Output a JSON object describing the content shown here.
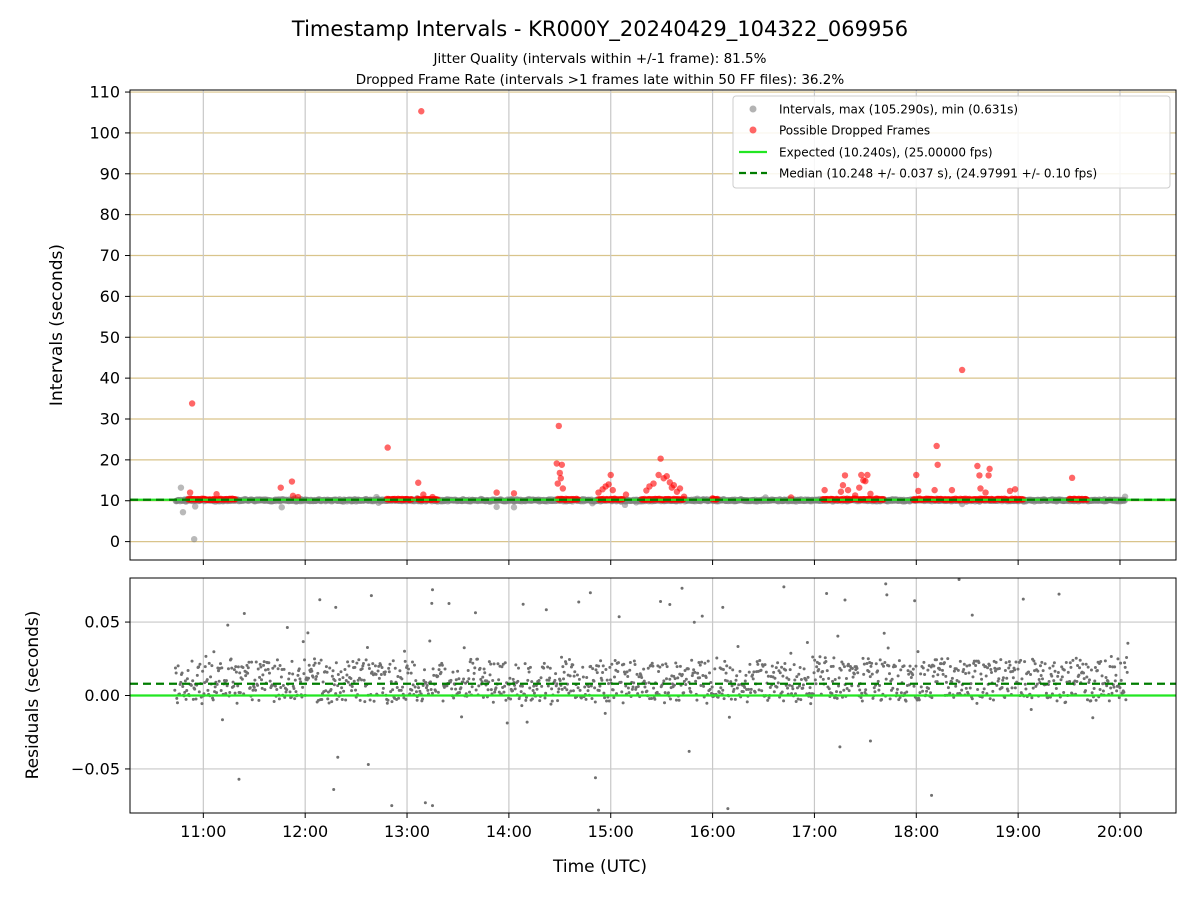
{
  "chart_data": [
    {
      "type": "scatter",
      "title": "Timestamp Intervals - KR000Y_20240429_104322_069956",
      "subtitles": [
        "Jitter Quality (intervals within +/-1 frame): 81.5%",
        "Dropped Frame Rate (intervals >1 frames late within 50 FF files): 36.2%"
      ],
      "xlabel": "Time (UTC)",
      "ylabel": "Intervals (seconds)",
      "xlim": [
        10.28,
        20.55
      ],
      "ylim": [
        -4.5,
        110.5
      ],
      "x_ticks": [
        "11:00",
        "12:00",
        "13:00",
        "14:00",
        "15:00",
        "16:00",
        "17:00",
        "18:00",
        "19:00",
        "20:00"
      ],
      "y_ticks": [
        "0",
        "10",
        "20",
        "30",
        "40",
        "50",
        "60",
        "70",
        "80",
        "90",
        "100",
        "110"
      ],
      "grid": true,
      "legend_position": "top-right",
      "legend": [
        "Intervals, max (105.290s), min (0.631s)",
        "Possible Dropped Frames",
        "Expected (10.240s), (25.00000 fps)",
        "Median (10.248 +/- 0.037 s), (24.97991 +/- 0.10 fps)"
      ],
      "expected": 10.24,
      "median": 10.248,
      "series": [
        {
          "name": "Intervals, max (105.290s), min (0.631s)",
          "color": "#808080",
          "points": [
            [
              10.75,
              10.1
            ],
            [
              10.78,
              13.2
            ],
            [
              10.8,
              7.2
            ],
            [
              10.83,
              9.8
            ],
            [
              10.88,
              10.5
            ],
            [
              10.91,
              0.6
            ],
            [
              10.92,
              8.6
            ],
            [
              11.25,
              10.4
            ],
            [
              11.35,
              9.9
            ],
            [
              11.55,
              10.3
            ],
            [
              11.77,
              8.4
            ],
            [
              11.9,
              10.6
            ],
            [
              12.1,
              10.0
            ],
            [
              12.3,
              10.3
            ],
            [
              12.45,
              9.9
            ],
            [
              12.6,
              10.4
            ],
            [
              12.7,
              10.9
            ],
            [
              12.72,
              9.5
            ],
            [
              12.95,
              10.2
            ],
            [
              13.1,
              10.6
            ],
            [
              13.3,
              9.8
            ],
            [
              13.55,
              10.3
            ],
            [
              13.72,
              10.2
            ],
            [
              13.88,
              8.5
            ],
            [
              14.05,
              8.4
            ],
            [
              14.2,
              10.4
            ],
            [
              14.35,
              10.0
            ],
            [
              14.72,
              10.3
            ],
            [
              14.82,
              9.4
            ],
            [
              15.14,
              9.0
            ],
            [
              15.25,
              9.6
            ],
            [
              15.45,
              10.1
            ],
            [
              15.85,
              10.5
            ],
            [
              16.05,
              10.0
            ],
            [
              16.22,
              10.3
            ],
            [
              16.4,
              10.1
            ],
            [
              16.52,
              10.8
            ],
            [
              16.7,
              10.2
            ],
            [
              16.85,
              10.0
            ],
            [
              17.05,
              10.4
            ],
            [
              17.72,
              10.1
            ],
            [
              18.2,
              10.5
            ],
            [
              18.45,
              9.2
            ],
            [
              18.65,
              10.3
            ],
            [
              19.05,
              10.1
            ],
            [
              19.25,
              10.3
            ],
            [
              19.45,
              10.0
            ],
            [
              19.75,
              10.2
            ],
            [
              19.85,
              10.4
            ],
            [
              19.95,
              10.1
            ],
            [
              20.05,
              11.0
            ]
          ],
          "cluster_ranges_hours": [
            [
              10.73,
              20.05
            ]
          ]
        },
        {
          "name": "Possible Dropped Frames",
          "color": "#ff0000",
          "points": [
            [
              10.89,
              33.8
            ],
            [
              10.87,
              12.0
            ],
            [
              11.13,
              11.6
            ],
            [
              11.76,
              13.2
            ],
            [
              11.87,
              14.7
            ],
            [
              11.88,
              11.2
            ],
            [
              11.93,
              10.9
            ],
            [
              12.81,
              23.0
            ],
            [
              13.11,
              14.4
            ],
            [
              13.14,
              105.3
            ],
            [
              13.16,
              11.5
            ],
            [
              13.25,
              10.9
            ],
            [
              13.88,
              12.0
            ],
            [
              14.05,
              11.8
            ],
            [
              14.49,
              28.3
            ],
            [
              14.47,
              19.1
            ],
            [
              14.5,
              16.8
            ],
            [
              14.51,
              15.5
            ],
            [
              14.48,
              14.2
            ],
            [
              14.53,
              13.0
            ],
            [
              14.52,
              18.8
            ],
            [
              14.88,
              12.0
            ],
            [
              14.92,
              12.8
            ],
            [
              14.95,
              13.5
            ],
            [
              14.98,
              14.0
            ],
            [
              15.0,
              16.3
            ],
            [
              15.02,
              12.6
            ],
            [
              15.15,
              11.5
            ],
            [
              15.35,
              12.5
            ],
            [
              15.38,
              13.5
            ],
            [
              15.42,
              14.2
            ],
            [
              15.47,
              16.3
            ],
            [
              15.49,
              20.3
            ],
            [
              15.52,
              15.5
            ],
            [
              15.55,
              16.0
            ],
            [
              15.58,
              14.5
            ],
            [
              15.6,
              13.2
            ],
            [
              15.62,
              13.8
            ],
            [
              15.65,
              12.2
            ],
            [
              15.68,
              13.0
            ],
            [
              15.72,
              11.0
            ],
            [
              16.0,
              10.6
            ],
            [
              16.77,
              10.8
            ],
            [
              17.1,
              12.6
            ],
            [
              17.26,
              12.2
            ],
            [
              17.28,
              13.8
            ],
            [
              17.3,
              16.2
            ],
            [
              17.33,
              12.6
            ],
            [
              17.4,
              11.3
            ],
            [
              17.44,
              13.2
            ],
            [
              17.46,
              16.3
            ],
            [
              17.48,
              15.0
            ],
            [
              17.5,
              14.8
            ],
            [
              17.52,
              16.3
            ],
            [
              17.55,
              11.7
            ],
            [
              18.0,
              16.3
            ],
            [
              18.02,
              12.4
            ],
            [
              18.18,
              12.6
            ],
            [
              18.2,
              23.4
            ],
            [
              18.21,
              18.8
            ],
            [
              18.35,
              12.6
            ],
            [
              18.45,
              42.0
            ],
            [
              18.6,
              18.5
            ],
            [
              18.62,
              16.2
            ],
            [
              18.63,
              13.0
            ],
            [
              18.68,
              12.0
            ],
            [
              18.71,
              16.2
            ],
            [
              18.72,
              17.8
            ],
            [
              18.92,
              12.4
            ],
            [
              18.97,
              12.8
            ],
            [
              19.53,
              15.6
            ]
          ],
          "cluster_ranges_hours": [
            [
              10.85,
              11.32
            ],
            [
              12.8,
              13.05
            ],
            [
              13.1,
              13.3
            ],
            [
              14.48,
              14.68
            ],
            [
              14.88,
              15.12
            ],
            [
              15.3,
              15.72
            ],
            [
              16.0,
              16.05
            ],
            [
              17.08,
              17.68
            ],
            [
              17.97,
              19.05
            ],
            [
              19.5,
              19.68
            ]
          ]
        }
      ]
    },
    {
      "type": "scatter",
      "xlabel": "Time (UTC)",
      "ylabel": "Residuals (seconds)",
      "xlim": [
        10.28,
        20.55
      ],
      "ylim": [
        -0.08,
        0.08
      ],
      "x_ticks": [
        "11:00",
        "12:00",
        "13:00",
        "14:00",
        "15:00",
        "16:00",
        "17:00",
        "18:00",
        "19:00",
        "20:00"
      ],
      "y_ticks": [
        "0.05",
        "0.00",
        "−0.05"
      ],
      "y_tick_values": [
        0.05,
        0.0,
        -0.05
      ],
      "grid": true,
      "expected_residual": 0.0,
      "median_residual": 0.008,
      "series": [
        {
          "name": "Residuals",
          "color": "#707070",
          "segments": [
            {
              "from": 10.72,
              "to": 12.15,
              "center": 0.01,
              "spread": 0.014
            },
            {
              "from": 12.15,
              "to": 13.1,
              "center": 0.01,
              "spread": 0.016
            },
            {
              "from": 13.1,
              "to": 15.45,
              "center": 0.008,
              "spread": 0.012
            },
            {
              "from": 15.45,
              "to": 16.45,
              "center": 0.009,
              "spread": 0.013
            },
            {
              "from": 16.45,
              "to": 18.55,
              "center": 0.012,
              "spread": 0.018
            },
            {
              "from": 18.55,
              "to": 20.08,
              "center": 0.011,
              "spread": 0.013
            }
          ],
          "outliers": [
            [
              11.35,
              -0.057
            ],
            [
              12.28,
              -0.064
            ],
            [
              12.32,
              -0.042
            ],
            [
              12.62,
              -0.047
            ],
            [
              12.85,
              -0.075
            ],
            [
              13.18,
              -0.073
            ],
            [
              13.25,
              -0.075
            ],
            [
              14.85,
              -0.056
            ],
            [
              14.88,
              -0.078
            ],
            [
              16.15,
              -0.077
            ],
            [
              18.15,
              -0.068
            ],
            [
              15.77,
              -0.038
            ],
            [
              17.25,
              -0.035
            ],
            [
              17.55,
              -0.031
            ],
            [
              13.25,
              0.072
            ],
            [
              14.8,
              0.07
            ],
            [
              15.7,
              0.073
            ],
            [
              16.7,
              0.074
            ],
            [
              17.7,
              0.076
            ],
            [
              18.42,
              0.079
            ],
            [
              12.65,
              0.068
            ],
            [
              12.3,
              0.06
            ],
            [
              15.58,
              0.062
            ],
            [
              16.1,
              0.06
            ],
            [
              17.3,
              0.065
            ]
          ]
        }
      ]
    }
  ]
}
